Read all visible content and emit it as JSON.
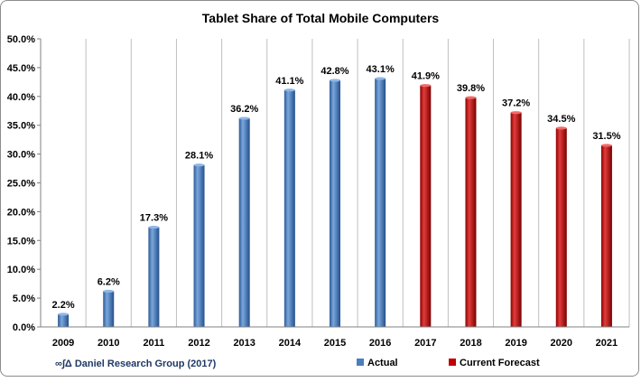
{
  "chart_data": {
    "type": "bar",
    "title": "Tablet Share of Total Mobile Computers",
    "xlabel": "",
    "ylabel": "",
    "categories": [
      "2009",
      "2010",
      "2011",
      "2012",
      "2013",
      "2014",
      "2015",
      "2016",
      "2017",
      "2018",
      "2019",
      "2020",
      "2021"
    ],
    "series": [
      {
        "name": "Actual",
        "color": "#4a7ebf",
        "values": [
          2.2,
          6.2,
          17.3,
          28.1,
          36.2,
          41.1,
          42.8,
          43.1,
          null,
          null,
          null,
          null,
          null
        ],
        "labels": [
          "2.2%",
          "6.2%",
          "17.3%",
          "28.1%",
          "36.2%",
          "41.1%",
          "42.8%",
          "43.1%",
          "",
          "",
          "",
          "",
          ""
        ]
      },
      {
        "name": "Current Forecast",
        "color": "#c00000",
        "values": [
          null,
          null,
          null,
          null,
          null,
          null,
          null,
          null,
          41.9,
          39.8,
          37.2,
          34.5,
          31.5
        ],
        "labels": [
          "",
          "",
          "",
          "",
          "",
          "",
          "",
          "",
          "41.9%",
          "39.8%",
          "37.2%",
          "34.5%",
          "31.5%"
        ]
      }
    ],
    "ylim": [
      0,
      50
    ],
    "yticks": [
      0,
      5,
      10,
      15,
      20,
      25,
      30,
      35,
      40,
      45,
      50
    ],
    "ytick_labels": [
      "0.0%",
      "5.0%",
      "10.0%",
      "15.0%",
      "20.0%",
      "25.0%",
      "30.0%",
      "35.0%",
      "40.0%",
      "45.0%",
      "50.0%"
    ],
    "grid": "vertical",
    "legend_position": "bottom-right",
    "credit": "∞∫Δ Daniel Research Group (2017)"
  }
}
